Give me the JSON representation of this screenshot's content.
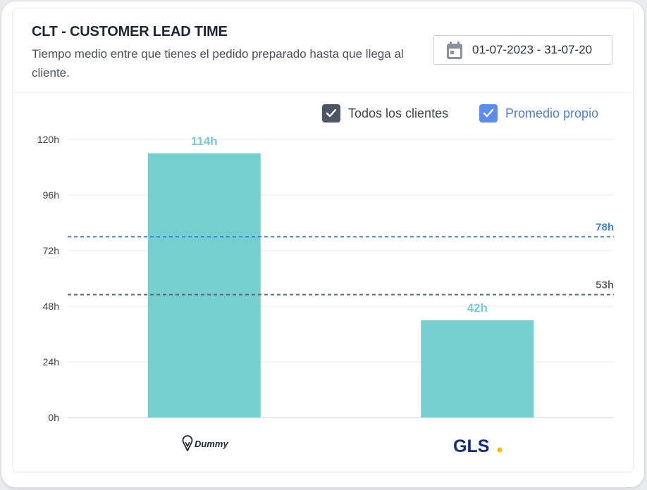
{
  "header": {
    "title": "CLT - CUSTOMER LEAD TIME",
    "subtitle": "Tiempo medio entre que tienes el pedido preparado hasta que llega al cliente."
  },
  "date_range": {
    "value": "01-07-2023 - 31-07-20"
  },
  "legend": {
    "all_clients": {
      "label": "Todos los clientes",
      "checked": true,
      "color": "#4d5566"
    },
    "own_average": {
      "label": "Promedio propio",
      "checked": true,
      "color": "#5b8def"
    }
  },
  "carriers": [
    {
      "name": "Dummy",
      "logo": "pin-icon"
    },
    {
      "name": "GLS",
      "dot_color": "#f5c400"
    }
  ],
  "chart_data": {
    "type": "bar",
    "categories": [
      "Dummy",
      "GLS"
    ],
    "values": [
      114,
      42
    ],
    "value_labels": [
      "114h",
      "42h"
    ],
    "bar_color": "#76cfcf",
    "label_color": "#76cfcf",
    "ylim": [
      0,
      120
    ],
    "yticks": [
      0,
      24,
      48,
      72,
      96,
      120
    ],
    "ytick_labels": [
      "0h",
      "24h",
      "48h",
      "72h",
      "96h",
      "120h"
    ],
    "grid": true,
    "reference_lines": [
      {
        "value": 78,
        "label": "78h",
        "color": "#3d7ef5",
        "style": "dashed"
      },
      {
        "value": 53,
        "label": "53h",
        "color": "#616874",
        "style": "dashed"
      }
    ]
  }
}
